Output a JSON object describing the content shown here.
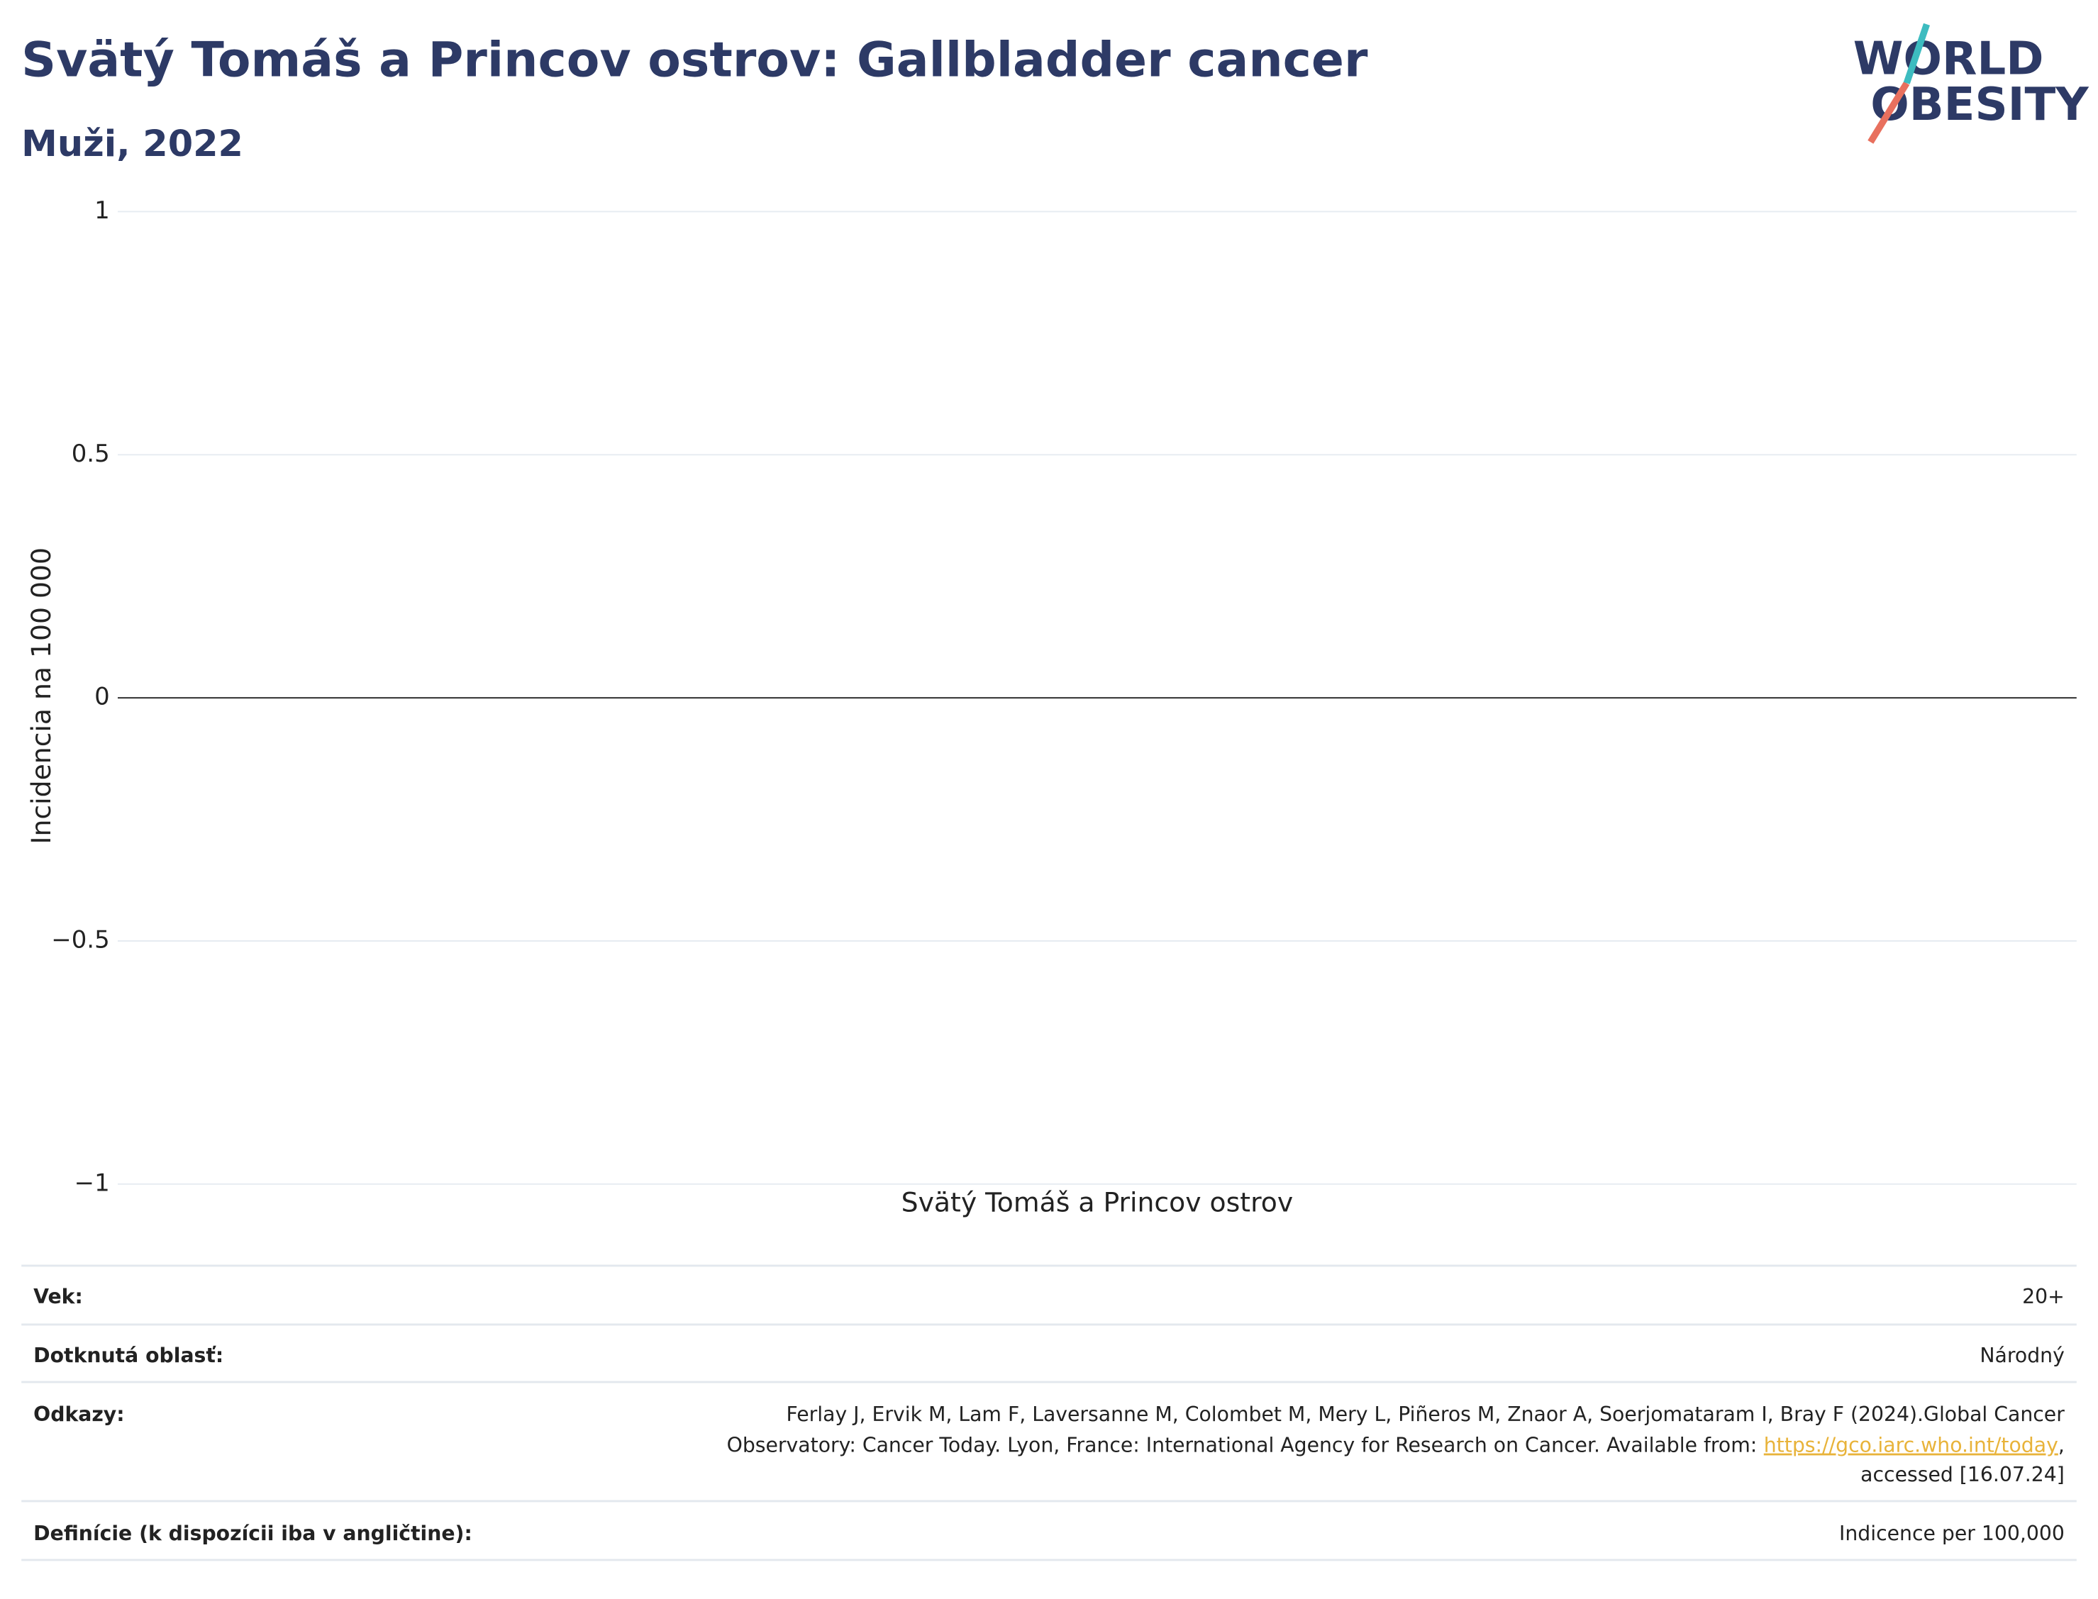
{
  "chart_data": {
    "type": "bar",
    "title": "Svätý Tomáš a Princov ostrov: Gallbladder cancer",
    "subtitle": "Muži, 2022",
    "y_label": "Incidencia na 100 000",
    "categories": [
      "Svätý Tomáš a Princov ostrov"
    ],
    "values": [
      0
    ],
    "color": "#2d3a66",
    "ylim": [
      -1,
      1
    ],
    "yticks": [
      {
        "value": -1,
        "label": "−1"
      },
      {
        "value": -0.5,
        "label": "−0.5"
      },
      0,
      0.5,
      1
    ],
    "grid": true
  },
  "logo": {
    "lines": [
      "WORLD",
      "OBESITY"
    ]
  },
  "table": {
    "rows": [
      [
        "Vek:",
        "20+"
      ],
      [
        "Dotknutá oblasť:",
        "Národný"
      ]
    ],
    "references": {
      "label": "Odkazy:",
      "line1": "Ferlay J, Ervik M, Lam F, Laversanne M, Colombet M, Mery L, Piñeros M, Znaor A, Soerjomataram I, Bray F (2024).Global Cancer",
      "line2": "Observatory: Cancer Today. Lyon, France: International Agency for Research on Cancer. Available from:",
      "link": "https://gco.iarc.who.int/today",
      "link_suffix": ",",
      "line3": "accessed [16.07.24]"
    },
    "definitions": [
      "Definície (k dispozícii iba v angličtine):",
      "Indicence per 100,000"
    ]
  }
}
